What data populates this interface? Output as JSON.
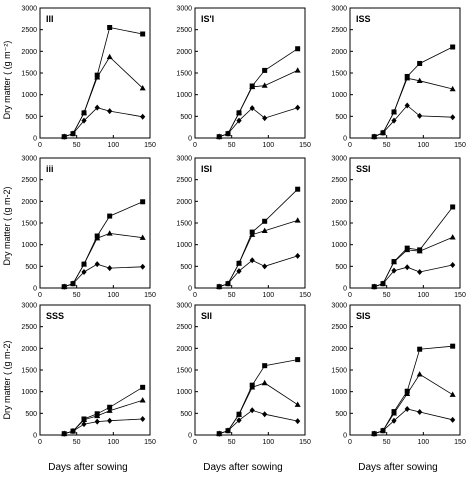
{
  "figure": {
    "ylabel_top": "Dry matter ( (g m⁻²)",
    "ylabel_mid": "Dry matter ( (g m-2)",
    "ylabel_bot": "Dry matter ( (g m-2)",
    "xlabel": "Days after sowing"
  },
  "chart_data": [
    {
      "type": "line",
      "title": "III",
      "x": [
        33,
        45,
        60,
        78,
        95,
        140
      ],
      "xlim": [
        0,
        150
      ],
      "ylim": [
        0,
        3000
      ],
      "xticks": [
        0,
        50,
        100,
        150
      ],
      "yticks": [
        0,
        500,
        1000,
        1500,
        2000,
        2500,
        3000
      ],
      "series": [
        {
          "marker": "square",
          "values": [
            30,
            100,
            580,
            1450,
            2550,
            2400
          ]
        },
        {
          "marker": "triangle",
          "values": [
            30,
            100,
            580,
            1400,
            1870,
            1150
          ]
        },
        {
          "marker": "diamond",
          "values": [
            30,
            100,
            400,
            700,
            620,
            490
          ]
        }
      ]
    },
    {
      "type": "line",
      "title": "IS'I",
      "x": [
        33,
        45,
        60,
        78,
        95,
        140
      ],
      "xlim": [
        0,
        150
      ],
      "ylim": [
        0,
        3000
      ],
      "xticks": [
        0,
        50,
        100,
        150
      ],
      "yticks": [
        0,
        500,
        1000,
        1500,
        2000,
        2500,
        3000
      ],
      "series": [
        {
          "marker": "square",
          "values": [
            30,
            100,
            580,
            1200,
            1560,
            2060
          ]
        },
        {
          "marker": "triangle",
          "values": [
            30,
            100,
            580,
            1180,
            1210,
            1560
          ]
        },
        {
          "marker": "diamond",
          "values": [
            30,
            100,
            400,
            690,
            460,
            700
          ]
        }
      ]
    },
    {
      "type": "line",
      "title": "ISS",
      "x": [
        33,
        45,
        60,
        78,
        95,
        140
      ],
      "xlim": [
        0,
        150
      ],
      "ylim": [
        0,
        3000
      ],
      "xticks": [
        0,
        50,
        100,
        150
      ],
      "yticks": [
        0,
        500,
        1000,
        1500,
        2000,
        2500,
        3000
      ],
      "series": [
        {
          "marker": "square",
          "values": [
            30,
            120,
            600,
            1420,
            1720,
            2100
          ]
        },
        {
          "marker": "triangle",
          "values": [
            30,
            120,
            600,
            1380,
            1320,
            1130
          ]
        },
        {
          "marker": "diamond",
          "values": [
            30,
            120,
            400,
            750,
            510,
            480
          ]
        }
      ]
    },
    {
      "type": "line",
      "title": "iii",
      "x": [
        33,
        45,
        60,
        78,
        95,
        140
      ],
      "xlim": [
        0,
        150
      ],
      "ylim": [
        0,
        3000
      ],
      "xticks": [
        0,
        50,
        100,
        150
      ],
      "yticks": [
        0,
        500,
        1000,
        1500,
        2000,
        2500,
        3000
      ],
      "series": [
        {
          "marker": "square",
          "values": [
            30,
            100,
            550,
            1200,
            1660,
            1990
          ]
        },
        {
          "marker": "triangle",
          "values": [
            30,
            100,
            550,
            1150,
            1260,
            1160
          ]
        },
        {
          "marker": "diamond",
          "values": [
            30,
            100,
            370,
            550,
            460,
            490
          ]
        }
      ]
    },
    {
      "type": "line",
      "title": "ISI",
      "x": [
        33,
        45,
        60,
        78,
        95,
        140
      ],
      "xlim": [
        0,
        150
      ],
      "ylim": [
        0,
        3000
      ],
      "xticks": [
        0,
        50,
        100,
        150
      ],
      "yticks": [
        0,
        500,
        1000,
        1500,
        2000,
        2500,
        3000
      ],
      "series": [
        {
          "marker": "square",
          "values": [
            30,
            100,
            570,
            1290,
            1540,
            2280
          ]
        },
        {
          "marker": "triangle",
          "values": [
            30,
            100,
            570,
            1230,
            1320,
            1560
          ]
        },
        {
          "marker": "diamond",
          "values": [
            30,
            100,
            390,
            640,
            500,
            740
          ]
        }
      ]
    },
    {
      "type": "line",
      "title": "SSI",
      "x": [
        33,
        45,
        60,
        78,
        95,
        140
      ],
      "xlim": [
        0,
        150
      ],
      "ylim": [
        0,
        3000
      ],
      "xticks": [
        0,
        50,
        100,
        150
      ],
      "yticks": [
        0,
        500,
        1000,
        1500,
        2000,
        2500,
        3000
      ],
      "series": [
        {
          "marker": "square",
          "values": [
            30,
            100,
            610,
            920,
            880,
            1870
          ]
        },
        {
          "marker": "triangle",
          "values": [
            30,
            100,
            600,
            880,
            850,
            1170
          ]
        },
        {
          "marker": "diamond",
          "values": [
            30,
            100,
            400,
            480,
            370,
            530
          ]
        }
      ]
    },
    {
      "type": "line",
      "title": "SSS",
      "x": [
        33,
        45,
        60,
        78,
        95,
        140
      ],
      "xlim": [
        0,
        150
      ],
      "ylim": [
        0,
        3000
      ],
      "xticks": [
        0,
        50,
        100,
        150
      ],
      "yticks": [
        0,
        500,
        1000,
        1500,
        2000,
        2500,
        3000
      ],
      "series": [
        {
          "marker": "square",
          "values": [
            30,
            90,
            370,
            490,
            640,
            1100
          ]
        },
        {
          "marker": "triangle",
          "values": [
            30,
            90,
            350,
            440,
            560,
            800
          ]
        },
        {
          "marker": "diamond",
          "values": [
            30,
            90,
            250,
            310,
            330,
            370
          ]
        }
      ]
    },
    {
      "type": "line",
      "title": "SII",
      "x": [
        33,
        45,
        60,
        78,
        95,
        140
      ],
      "xlim": [
        0,
        150
      ],
      "ylim": [
        0,
        3000
      ],
      "xticks": [
        0,
        50,
        100,
        150
      ],
      "yticks": [
        0,
        500,
        1000,
        1500,
        2000,
        2500,
        3000
      ],
      "series": [
        {
          "marker": "square",
          "values": [
            30,
            100,
            480,
            1150,
            1600,
            1740
          ]
        },
        {
          "marker": "triangle",
          "values": [
            30,
            100,
            470,
            1100,
            1200,
            700
          ]
        },
        {
          "marker": "diamond",
          "values": [
            30,
            100,
            340,
            570,
            480,
            320
          ]
        }
      ]
    },
    {
      "type": "line",
      "title": "SIS",
      "x": [
        33,
        45,
        60,
        78,
        95,
        140
      ],
      "xlim": [
        0,
        150
      ],
      "ylim": [
        0,
        3000
      ],
      "xticks": [
        0,
        50,
        100,
        150
      ],
      "yticks": [
        0,
        500,
        1000,
        1500,
        2000,
        2500,
        3000
      ],
      "series": [
        {
          "marker": "square",
          "values": [
            30,
            100,
            540,
            1010,
            1980,
            2050
          ]
        },
        {
          "marker": "triangle",
          "values": [
            30,
            100,
            500,
            950,
            1400,
            930
          ]
        },
        {
          "marker": "diamond",
          "values": [
            30,
            100,
            330,
            600,
            530,
            350
          ]
        }
      ]
    }
  ]
}
